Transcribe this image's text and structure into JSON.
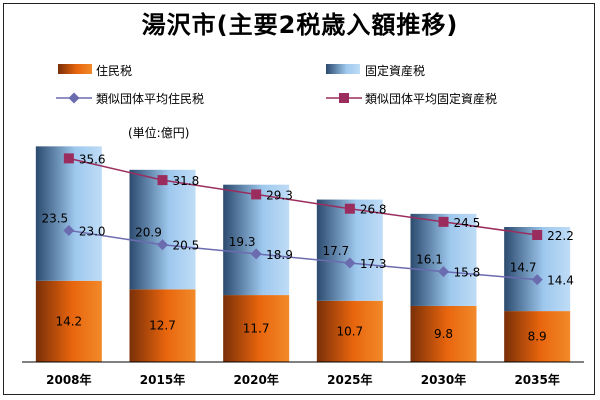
{
  "chart_data": {
    "type": "bar",
    "title": "湯沢市(主要2税歳入額推移)",
    "unit": "(単位:億円)",
    "categories": [
      "2008年",
      "2015年",
      "2020年",
      "2025年",
      "2030年",
      "2035年"
    ],
    "stacked": true,
    "series": [
      {
        "name": "住民税",
        "type": "bar",
        "values": [
          14.2,
          12.7,
          11.7,
          10.7,
          9.8,
          8.9
        ],
        "color": "#e8650d"
      },
      {
        "name": "固定資産税",
        "type": "bar",
        "values": [
          23.5,
          20.9,
          19.3,
          17.7,
          16.1,
          14.7
        ],
        "color": "#9ec8ee"
      },
      {
        "name": "類似団体平均住民税",
        "type": "line",
        "marker": "diamond",
        "values": [
          23.0,
          20.5,
          18.9,
          17.3,
          15.8,
          14.4
        ],
        "color": "#6b6bb0"
      },
      {
        "name": "類似団体平均固定資産税",
        "type": "line",
        "marker": "square",
        "values": [
          35.6,
          31.8,
          29.3,
          26.8,
          24.5,
          22.2
        ],
        "color": "#9b2d5e"
      }
    ],
    "ylim": [
      0,
      40
    ],
    "grid": false,
    "legend_position": "top"
  }
}
